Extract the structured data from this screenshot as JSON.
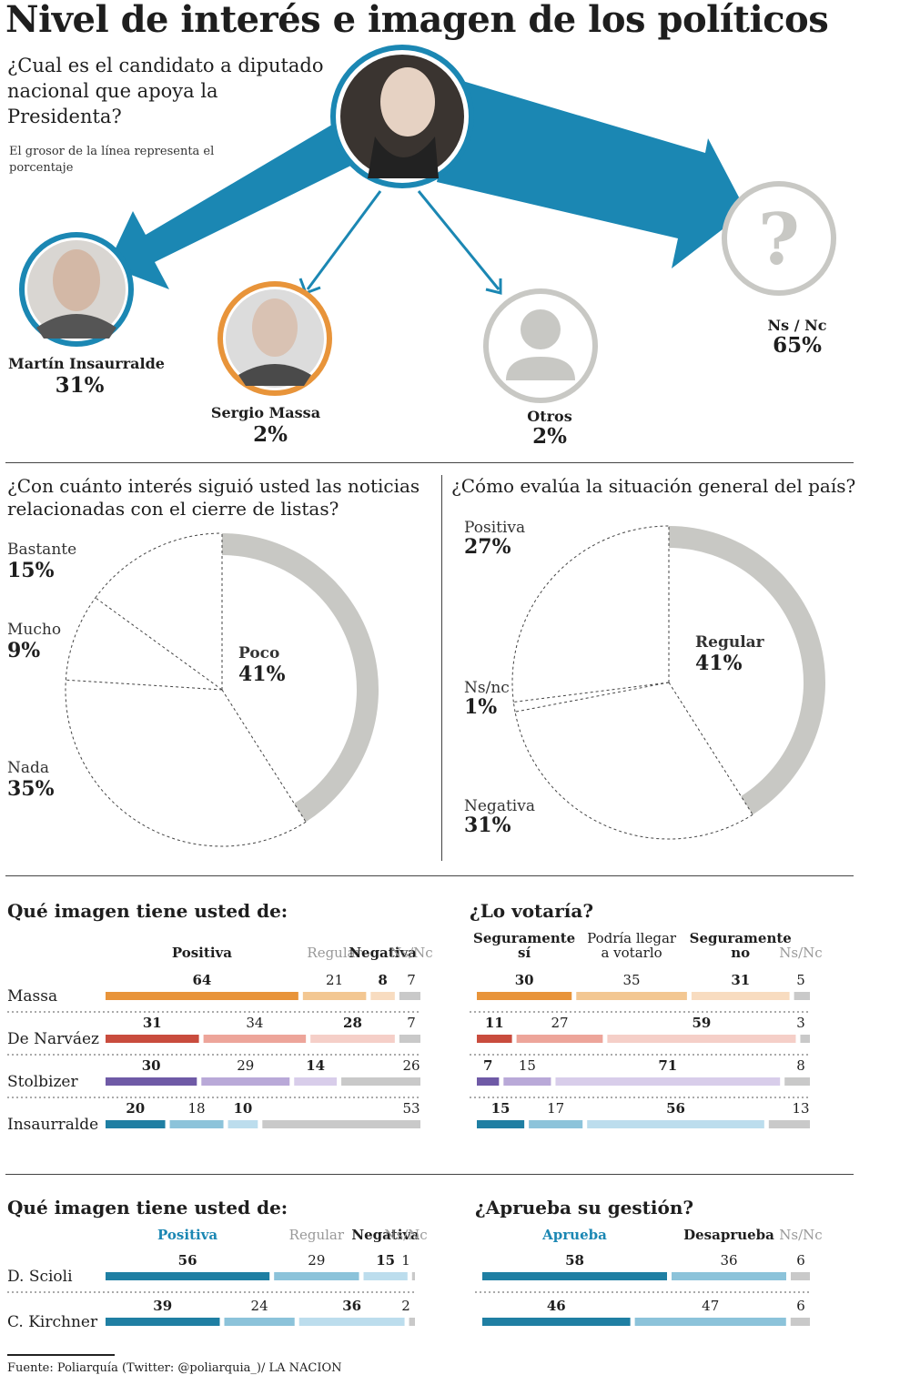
{
  "title": "Nivel de interés e imagen de los políticos",
  "top": {
    "question": "¿Cual es el candidato a diputado nacional que apoya la Presidenta?",
    "note": "El grosor de la línea representa el porcentaje",
    "results": [
      {
        "name": "Martín Insaurralde",
        "value": 31,
        "label": "31%"
      },
      {
        "name": "Sergio Massa",
        "value": 2,
        "label": "2%"
      },
      {
        "name": "Otros",
        "value": 2,
        "label": "2%"
      },
      {
        "name": "Ns / Nc",
        "value": 65,
        "label": "65%"
      }
    ],
    "unknown_symbol": "?"
  },
  "pie1": {
    "question": "¿Con cuánto interés siguió usted las noticias relacionadas con el cierre de listas?",
    "slices": [
      {
        "name": "Poco",
        "value": 41,
        "label": "41%"
      },
      {
        "name": "Nada",
        "value": 35,
        "label": "35%"
      },
      {
        "name": "Mucho",
        "value": 9,
        "label": "9%"
      },
      {
        "name": "Bastante",
        "value": 15,
        "label": "15%"
      }
    ]
  },
  "pie2": {
    "question": "¿Cómo evalúa la situación general del país?",
    "slices": [
      {
        "name": "Regular",
        "value": 41,
        "label": "41%"
      },
      {
        "name": "Negativa",
        "value": 31,
        "label": "31%"
      },
      {
        "name": "Ns/nc",
        "value": 1,
        "label": "1%"
      },
      {
        "name": "Positiva",
        "value": 27,
        "label": "27%"
      }
    ]
  },
  "chart_data": [
    {
      "type": "bar",
      "title": "Qué imagen tiene usted de:",
      "categories": [
        "Massa",
        "De Narváez",
        "Stolbizer",
        "Insaurralde"
      ],
      "series": [
        {
          "name": "Positiva",
          "values": [
            64,
            31,
            30,
            20
          ]
        },
        {
          "name": "Regular",
          "values": [
            21,
            34,
            29,
            18
          ]
        },
        {
          "name": "Negativa",
          "values": [
            8,
            28,
            14,
            10
          ]
        },
        {
          "name": "Ns/Nc",
          "values": [
            7,
            7,
            26,
            53
          ]
        }
      ]
    },
    {
      "type": "bar",
      "title": "¿Lo votaría?",
      "categories": [
        "Massa",
        "De Narváez",
        "Stolbizer",
        "Insaurralde"
      ],
      "series": [
        {
          "name": "Seguramente sí",
          "values": [
            30,
            11,
            7,
            15
          ]
        },
        {
          "name": "Podría llegar a votarlo",
          "values": [
            35,
            27,
            15,
            17
          ]
        },
        {
          "name": "Seguramente no",
          "values": [
            31,
            59,
            71,
            56
          ]
        },
        {
          "name": "Ns/Nc",
          "values": [
            5,
            3,
            8,
            13
          ]
        }
      ]
    },
    {
      "type": "bar",
      "title": "Qué imagen tiene usted de:",
      "categories": [
        "D. Scioli",
        "C. Kirchner"
      ],
      "series": [
        {
          "name": "Positiva",
          "values": [
            56,
            39
          ]
        },
        {
          "name": "Regular",
          "values": [
            29,
            24
          ]
        },
        {
          "name": "Negativa",
          "values": [
            15,
            36
          ]
        },
        {
          "name": "Ns/Nc",
          "values": [
            1,
            2
          ]
        }
      ]
    },
    {
      "type": "bar",
      "title": "¿Aprueba su gestión?",
      "categories": [
        "D. Scioli",
        "C. Kirchner"
      ],
      "series": [
        {
          "name": "Aprueba",
          "values": [
            58,
            46
          ]
        },
        {
          "name": "Desaprueba",
          "values": [
            36,
            47
          ]
        },
        {
          "name": "Ns/Nc",
          "values": [
            6,
            6
          ]
        }
      ]
    }
  ],
  "colors": {
    "accent": "#1b87b3",
    "massa": [
      "#e8943a",
      "#f3c792",
      "#f8dcc0",
      "#c9c9c9"
    ],
    "denarvaez": [
      "#c94c3e",
      "#eda59a",
      "#f5cfc8",
      "#c9c9c9"
    ],
    "stolbizer": [
      "#6f5aa6",
      "#b9a9d8",
      "#d8cdea",
      "#c9c9c9"
    ],
    "insaurralde": [
      "#1f7fa3",
      "#8cc3da",
      "#bcdded",
      "#c9c9c9"
    ],
    "scioli": [
      "#1f7fa3",
      "#8cc3da",
      "#bcdded",
      "#c9c9c9"
    ],
    "pie_gray": "#c8c8c4",
    "nsnc_gray": "#c9c9c9"
  },
  "source": "Fuente: Poliarquía (Twitter: @poliarquia_)/ LA NACION"
}
